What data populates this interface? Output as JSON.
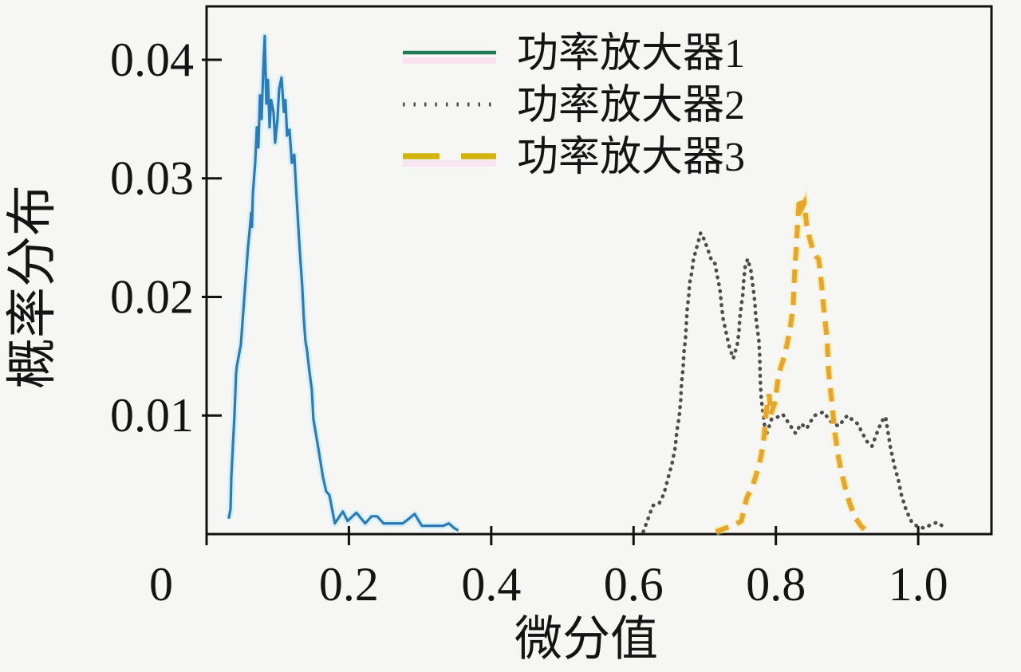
{
  "figure": {
    "background": "#f6f6f4",
    "title": ""
  },
  "chart_data": {
    "type": "line",
    "title": "",
    "xlabel": "微分值",
    "ylabel": "概率分布",
    "xlim": [
      0,
      1.103
    ],
    "ylim": [
      0,
      0.0445
    ],
    "grid": false,
    "legend_position": "upper-center-right frameless",
    "x_ticks": [
      {
        "value": 0,
        "label": "0",
        "dx": -57
      },
      {
        "value": 0.2,
        "label": "0.2",
        "dx": 0
      },
      {
        "value": 0.4,
        "label": "0.4",
        "dx": 0
      },
      {
        "value": 0.6,
        "label": "0.6",
        "dx": 0
      },
      {
        "value": 0.8,
        "label": "0.8",
        "dx": 0
      },
      {
        "value": 1.0,
        "label": "1.0",
        "dx": 0
      }
    ],
    "y_ticks": [
      {
        "value": 0.01,
        "label": "0.01"
      },
      {
        "value": 0.02,
        "label": "0.02"
      },
      {
        "value": 0.03,
        "label": "0.03"
      },
      {
        "value": 0.04,
        "label": "0.04"
      }
    ],
    "series": [
      {
        "name": "功率放大器1",
        "style": "solid",
        "color": "#2b7bba",
        "halo_color": "#c6ecf8",
        "legend_color": "#1f7a5c",
        "points": [
          [
            0.031,
            0.0013
          ],
          [
            0.0336,
            0.0021
          ],
          [
            0.0347,
            0.0048
          ],
          [
            0.037,
            0.0075
          ],
          [
            0.0392,
            0.0101
          ],
          [
            0.0414,
            0.0135
          ],
          [
            0.0426,
            0.0142
          ],
          [
            0.0482,
            0.016
          ],
          [
            0.0515,
            0.0187
          ],
          [
            0.0549,
            0.0215
          ],
          [
            0.0582,
            0.0242
          ],
          [
            0.0605,
            0.0256
          ],
          [
            0.0616,
            0.0264
          ],
          [
            0.0627,
            0.0271
          ],
          [
            0.0638,
            0.0259
          ],
          [
            0.065,
            0.0287
          ],
          [
            0.0683,
            0.0313
          ],
          [
            0.0706,
            0.0343
          ],
          [
            0.0728,
            0.0326
          ],
          [
            0.075,
            0.037
          ],
          [
            0.0773,
            0.035
          ],
          [
            0.0795,
            0.039
          ],
          [
            0.0817,
            0.042
          ],
          [
            0.084,
            0.0363
          ],
          [
            0.0862,
            0.0383
          ],
          [
            0.0885,
            0.0343
          ],
          [
            0.0907,
            0.0366
          ],
          [
            0.0941,
            0.0356
          ],
          [
            0.0963,
            0.033
          ],
          [
            0.0997,
            0.035
          ],
          [
            0.1019,
            0.0375
          ],
          [
            0.1053,
            0.0385
          ],
          [
            0.1086,
            0.0356
          ],
          [
            0.1109,
            0.0366
          ],
          [
            0.1131,
            0.0336
          ],
          [
            0.1165,
            0.0341
          ],
          [
            0.1198,
            0.0313
          ],
          [
            0.1232,
            0.032
          ],
          [
            0.1265,
            0.0283
          ],
          [
            0.1299,
            0.0249
          ],
          [
            0.1321,
            0.0229
          ],
          [
            0.1344,
            0.0209
          ],
          [
            0.1366,
            0.0182
          ],
          [
            0.1389,
            0.0163
          ],
          [
            0.1411,
            0.0155
          ],
          [
            0.1445,
            0.0137
          ],
          [
            0.1478,
            0.0122
          ],
          [
            0.1501,
            0.0097
          ],
          [
            0.1534,
            0.0085
          ],
          [
            0.1568,
            0.0073
          ],
          [
            0.1601,
            0.0061
          ],
          [
            0.1635,
            0.0048
          ],
          [
            0.168,
            0.0036
          ],
          [
            0.1725,
            0.0033
          ],
          [
            0.1803,
            0.0009
          ],
          [
            0.1915,
            0.0019
          ],
          [
            0.1982,
            0.0011
          ],
          [
            0.2105,
            0.0018
          ],
          [
            0.2228,
            0.0009
          ],
          [
            0.2318,
            0.0015
          ],
          [
            0.2396,
            0.0015
          ],
          [
            0.2486,
            0.0009
          ],
          [
            0.2755,
            0.0009
          ],
          [
            0.2844,
            0.0013
          ],
          [
            0.2923,
            0.0017
          ],
          [
            0.3024,
            0.0007
          ],
          [
            0.3203,
            0.0007
          ],
          [
            0.3326,
            0.0007
          ],
          [
            0.3404,
            0.0009
          ],
          [
            0.3483,
            0.0005
          ],
          [
            0.3539,
            0.0003
          ]
        ]
      },
      {
        "name": "功率放大器2",
        "style": "dotted",
        "color": "#4d4d4d",
        "halo_color": "none",
        "legend_color": "#4d4d4d",
        "points": [
          [
            0.6137,
            0.0002
          ],
          [
            0.6204,
            0.0013
          ],
          [
            0.6271,
            0.0024
          ],
          [
            0.6361,
            0.0026
          ],
          [
            0.6428,
            0.0034
          ],
          [
            0.6484,
            0.0047
          ],
          [
            0.654,
            0.0059
          ],
          [
            0.6585,
            0.0073
          ],
          [
            0.6607,
            0.0086
          ],
          [
            0.6641,
            0.0099
          ],
          [
            0.6663,
            0.0113
          ],
          [
            0.6674,
            0.0127
          ],
          [
            0.6696,
            0.014
          ],
          [
            0.6708,
            0.0153
          ],
          [
            0.673,
            0.0165
          ],
          [
            0.6741,
            0.0177
          ],
          [
            0.6752,
            0.0189
          ],
          [
            0.6775,
            0.02
          ],
          [
            0.6786,
            0.0211
          ],
          [
            0.682,
            0.0221
          ],
          [
            0.6842,
            0.0232
          ],
          [
            0.6898,
            0.0244
          ],
          [
            0.6943,
            0.0254
          ],
          [
            0.6988,
            0.0249
          ],
          [
            0.7044,
            0.024
          ],
          [
            0.71,
            0.023
          ],
          [
            0.7145,
            0.0228
          ],
          [
            0.7178,
            0.0217
          ],
          [
            0.7212,
            0.0207
          ],
          [
            0.7234,
            0.0194
          ],
          [
            0.7257,
            0.0182
          ],
          [
            0.7301,
            0.017
          ],
          [
            0.7346,
            0.0158
          ],
          [
            0.7402,
            0.0148
          ],
          [
            0.7458,
            0.016
          ],
          [
            0.7481,
            0.017
          ],
          [
            0.7492,
            0.0182
          ],
          [
            0.7514,
            0.0192
          ],
          [
            0.7537,
            0.0203
          ],
          [
            0.7548,
            0.0214
          ],
          [
            0.757,
            0.0226
          ],
          [
            0.7604,
            0.0232
          ],
          [
            0.7649,
            0.0222
          ],
          [
            0.7682,
            0.0207
          ],
          [
            0.7705,
            0.0195
          ],
          [
            0.7716,
            0.0184
          ],
          [
            0.7738,
            0.0174
          ],
          [
            0.7761,
            0.0163
          ],
          [
            0.7772,
            0.0152
          ],
          [
            0.7783,
            0.0127
          ],
          [
            0.7794,
            0.0115
          ],
          [
            0.7817,
            0.0103
          ],
          [
            0.7839,
            0.0093
          ],
          [
            0.7862,
            0.0083
          ],
          [
            0.794,
            0.0097
          ],
          [
            0.8041,
            0.0099
          ],
          [
            0.8097,
            0.0101
          ],
          [
            0.8186,
            0.0093
          ],
          [
            0.8276,
            0.0085
          ],
          [
            0.8354,
            0.0093
          ],
          [
            0.8433,
            0.0089
          ],
          [
            0.8489,
            0.0095
          ],
          [
            0.8545,
            0.01
          ],
          [
            0.8668,
            0.0103
          ],
          [
            0.8769,
            0.0095
          ],
          [
            0.8881,
            0.0091
          ],
          [
            0.9004,
            0.01
          ],
          [
            0.9082,
            0.0096
          ],
          [
            0.9149,
            0.0093
          ],
          [
            0.9216,
            0.0085
          ],
          [
            0.9283,
            0.0078
          ],
          [
            0.935,
            0.0074
          ],
          [
            0.9418,
            0.0085
          ],
          [
            0.9485,
            0.0095
          ],
          [
            0.9541,
            0.0099
          ],
          [
            0.9608,
            0.0074
          ],
          [
            0.9664,
            0.0058
          ],
          [
            0.972,
            0.0046
          ],
          [
            0.9765,
            0.0033
          ],
          [
            0.9832,
            0.002
          ],
          [
            0.991,
            0.001
          ],
          [
            1.0,
            0.0006
          ],
          [
            1.009,
            0.0005
          ],
          [
            1.0179,
            0.0008
          ],
          [
            1.0269,
            0.001
          ],
          [
            1.0336,
            0.0007
          ],
          [
            1.0403,
            0.0005
          ]
        ]
      },
      {
        "name": "功率放大器3",
        "style": "dashed",
        "color": "#e9a42c",
        "halo_color": "#f2e96e",
        "legend_color": "#d2b40c",
        "points": [
          [
            0.7156,
            0.0002
          ],
          [
            0.729,
            0.0005
          ],
          [
            0.7402,
            0.0007
          ],
          [
            0.7514,
            0.0011
          ],
          [
            0.7593,
            0.0031
          ],
          [
            0.7671,
            0.004
          ],
          [
            0.7738,
            0.0053
          ],
          [
            0.7794,
            0.0066
          ],
          [
            0.7828,
            0.0079
          ],
          [
            0.7873,
            0.0107
          ],
          [
            0.7906,
            0.0118
          ],
          [
            0.7929,
            0.0101
          ],
          [
            0.7985,
            0.0111
          ],
          [
            0.8041,
            0.0135
          ],
          [
            0.8108,
            0.0148
          ],
          [
            0.8164,
            0.0162
          ],
          [
            0.8209,
            0.0177
          ],
          [
            0.8242,
            0.0192
          ],
          [
            0.8265,
            0.0222
          ],
          [
            0.8287,
            0.0242
          ],
          [
            0.8309,
            0.0266
          ],
          [
            0.8331,
            0.0284
          ],
          [
            0.8365,
            0.0275
          ],
          [
            0.8399,
            0.0279
          ],
          [
            0.8432,
            0.0261
          ],
          [
            0.8477,
            0.0249
          ],
          [
            0.8522,
            0.0239
          ],
          [
            0.8567,
            0.0234
          ],
          [
            0.86,
            0.0232
          ],
          [
            0.8623,
            0.0222
          ],
          [
            0.8645,
            0.0209
          ],
          [
            0.8668,
            0.0193
          ],
          [
            0.8701,
            0.0175
          ],
          [
            0.8724,
            0.016
          ],
          [
            0.8735,
            0.0142
          ],
          [
            0.8757,
            0.0128
          ],
          [
            0.8791,
            0.0108
          ],
          [
            0.8824,
            0.0088
          ],
          [
            0.8869,
            0.0068
          ],
          [
            0.8925,
            0.0051
          ],
          [
            0.8981,
            0.0038
          ],
          [
            0.9037,
            0.0026
          ],
          [
            0.9104,
            0.0015
          ],
          [
            0.9194,
            0.0007
          ],
          [
            0.9261,
            0.0003
          ]
        ]
      }
    ]
  }
}
